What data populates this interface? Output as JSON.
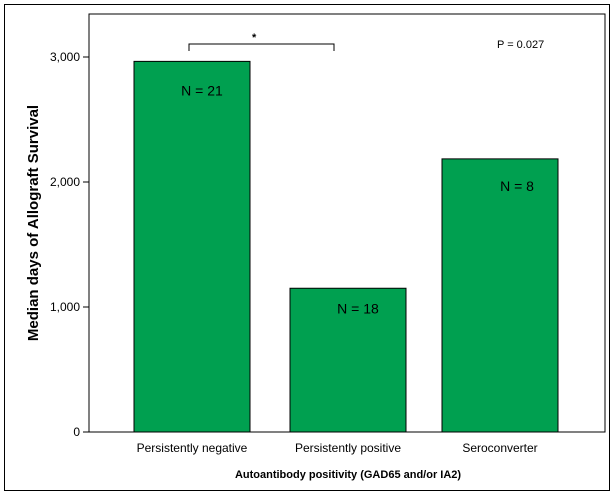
{
  "chart_data": {
    "type": "bar",
    "categories": [
      "Persistently negative",
      "Persistently positive",
      "Seroconverter"
    ],
    "values": [
      2965,
      1150,
      2185
    ],
    "data_labels": [
      "N = 21",
      "N = 18",
      "N = 8"
    ],
    "ylabel": "Median days of Allograft Survival",
    "xlabel": "Autoantibody positivity (GAD65 and/or IA2)",
    "ylim": [
      0,
      3000
    ],
    "yticks": [
      0,
      1000,
      2000,
      3000
    ],
    "ytick_labels": [
      "0",
      "1,000",
      "2,000",
      "3,000"
    ],
    "bar_color": "#00A050",
    "grid": false,
    "annotations": {
      "p_value": "P = 0.027",
      "significance_marker": "*"
    }
  }
}
